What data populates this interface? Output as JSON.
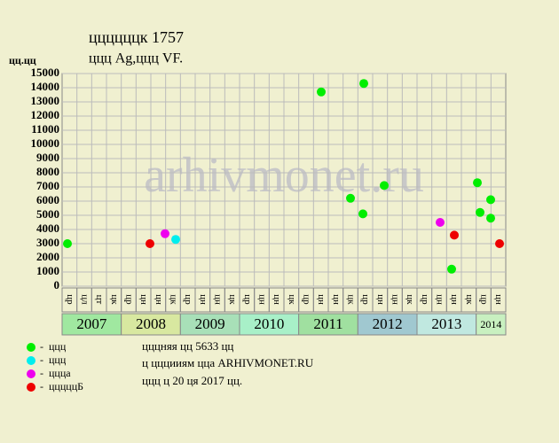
{
  "chart_data": {
    "type": "scatter",
    "title": "ццццццк 1757",
    "subtitle": "ццц Ag,ццц VF.",
    "y_label": "цц.цц",
    "watermark": "arhivmonet.ru",
    "xlim": [
      0,
      30
    ],
    "ylim": [
      0,
      15000
    ],
    "yticks": [
      0,
      1000,
      2000,
      3000,
      4000,
      5000,
      6000,
      7000,
      8000,
      9000,
      10000,
      11000,
      12000,
      13000,
      14000,
      15000
    ],
    "grid": true,
    "periods": [
      {
        "year": "2007",
        "color": "#a0e8a0",
        "quarters": [
          "цр",
          "цл",
          "цт",
          "цк"
        ]
      },
      {
        "year": "2008",
        "color": "#d8e8a0",
        "quarters": [
          "цр",
          "цн",
          "цн",
          "цк"
        ]
      },
      {
        "year": "2009",
        "color": "#a8e0b8",
        "quarters": [
          "цр",
          "цн",
          "цн",
          "цк"
        ]
      },
      {
        "year": "2010",
        "color": "#a8f0c8",
        "quarters": [
          "цр",
          "цн",
          "цн",
          "цк"
        ]
      },
      {
        "year": "2011",
        "color": "#a0e0a0",
        "quarters": [
          "цр",
          "цн",
          "цн",
          "цк"
        ]
      },
      {
        "year": "2012",
        "color": "#a0c8d0",
        "quarters": [
          "цр",
          "цн",
          "цн",
          "цк"
        ]
      },
      {
        "year": "2013",
        "color": "#c0e8e0",
        "quarters": [
          "цр",
          "цн",
          "цн",
          "цк"
        ]
      },
      {
        "year": "2014",
        "color": "#c8f0c0",
        "quarters": [
          "цр",
          "цн"
        ]
      }
    ],
    "series": [
      {
        "name": "ццц",
        "color": "#00ee00",
        "x": [
          0.36,
          17.52,
          20.4,
          19.5,
          20.34,
          21.78,
          26.34,
          28.08,
          28.26,
          28.98,
          28.98
        ],
        "values": [
          3000,
          13700,
          14300,
          6200,
          5100,
          7100,
          1200,
          7300,
          5200,
          6100,
          4800
        ]
      },
      {
        "name": "ццц",
        "color": "#00eeee",
        "x": [
          7.68
        ],
        "values": [
          3300
        ]
      },
      {
        "name": "ццца",
        "color": "#ee00ee",
        "x": [
          6.96,
          25.56
        ],
        "values": [
          3700,
          4500
        ]
      },
      {
        "name": "цццццБ",
        "color": "#ee0000",
        "x": [
          5.94,
          26.52,
          29.58
        ],
        "values": [
          3000,
          3600,
          3000
        ]
      }
    ],
    "notes": [
      "цццняя цц 5633 цц",
      "ц цццииям цца ARHIVMONET.RU",
      "ццц ц 20 ця 2017 цц."
    ]
  }
}
